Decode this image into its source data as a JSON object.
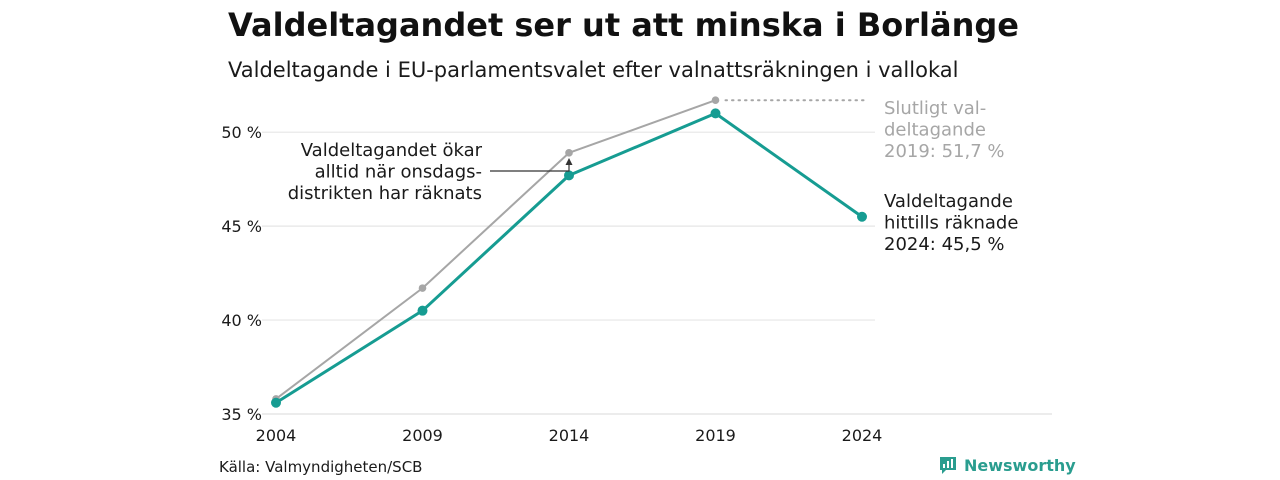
{
  "title": "Valdeltagandet ser ut att minska i Borlänge",
  "subtitle": "Valdeltagande i EU-parlamentsvalet efter valnattsräkningen i vallokal",
  "source": "Källa: Valmyndigheten/SCB",
  "brand": {
    "name": "Newsworthy",
    "icon": "newsworthy-logo-icon",
    "color": "#2a9d8f"
  },
  "chart_data": {
    "type": "line",
    "x": [
      2004,
      2009,
      2014,
      2019,
      2024
    ],
    "xticks": [
      "2004",
      "2009",
      "2014",
      "2019",
      "2024"
    ],
    "yticks": [
      {
        "value": 35,
        "label": "35 %"
      },
      {
        "value": 40,
        "label": "40 %"
      },
      {
        "value": 45,
        "label": "45 %"
      },
      {
        "value": 50,
        "label": "50 %"
      }
    ],
    "ylim": [
      35,
      52
    ],
    "grid": true,
    "series": [
      {
        "values": [
          35.8,
          41.7,
          48.9,
          51.7,
          null
        ],
        "color": "#a6a6a6"
      },
      {
        "values": [
          35.6,
          40.5,
          47.7,
          51.0,
          45.5
        ],
        "color": "#169c92"
      }
    ],
    "annotations": {
      "final": [
        "Slutligt val-",
        "deltagande",
        "2019: 51,7 %"
      ],
      "current": [
        "Valdeltagande",
        "hittills räknade",
        "2024: 45,5 %"
      ],
      "note": [
        "Valdeltagandet ökar",
        "alltid när onsdags-",
        "distrikten har räknats"
      ]
    }
  }
}
